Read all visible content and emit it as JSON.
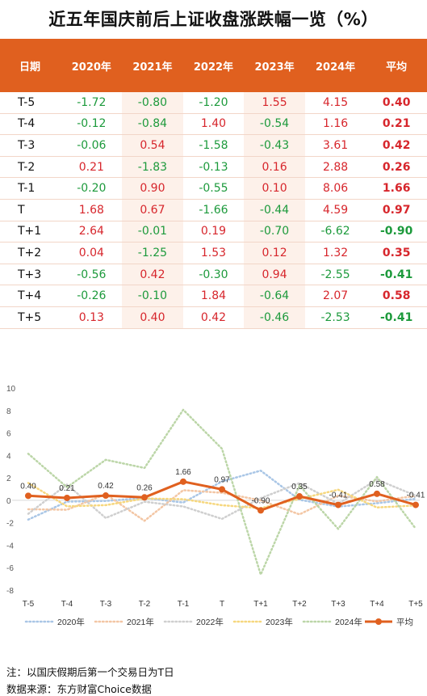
{
  "title": "近五年国庆前后上证收盘涨跌幅一览（%）",
  "table": {
    "headers": [
      "日期",
      "2020年",
      "2021年",
      "2022年",
      "2023年",
      "2024年",
      "平均"
    ],
    "rows": [
      [
        "T-5",
        "-1.72",
        "-0.80",
        "-1.20",
        "1.55",
        "4.15",
        "0.40"
      ],
      [
        "T-4",
        "-0.12",
        "-0.84",
        "1.40",
        "-0.54",
        "1.16",
        "0.21"
      ],
      [
        "T-3",
        "-0.06",
        "0.54",
        "-1.58",
        "-0.43",
        "3.61",
        "0.42"
      ],
      [
        "T-2",
        "0.21",
        "-1.83",
        "-0.13",
        "0.16",
        "2.88",
        "0.26"
      ],
      [
        "T-1",
        "-0.20",
        "0.90",
        "-0.55",
        "0.10",
        "8.06",
        "1.66"
      ],
      [
        "T",
        "1.68",
        "0.67",
        "-1.66",
        "-0.44",
        "4.59",
        "0.97"
      ],
      [
        "T+1",
        "2.64",
        "-0.01",
        "0.19",
        "-0.70",
        "-6.62",
        "-0.90"
      ],
      [
        "T+2",
        "0.04",
        "-1.25",
        "1.53",
        "0.12",
        "1.32",
        "0.35"
      ],
      [
        "T+3",
        "-0.56",
        "0.42",
        "-0.30",
        "0.94",
        "-2.55",
        "-0.41"
      ],
      [
        "T+4",
        "-0.26",
        "-0.10",
        "1.84",
        "-0.64",
        "2.07",
        "0.58"
      ],
      [
        "T+5",
        "0.13",
        "0.40",
        "0.42",
        "-0.46",
        "-2.53",
        "-0.41"
      ]
    ]
  },
  "colors": {
    "header_bg": "#e0601f",
    "positive": "#d7262c",
    "negative": "#1d9a3c",
    "shade": "#fdf1ea"
  },
  "chart_data": {
    "type": "line",
    "categories": [
      "T-5",
      "T-4",
      "T-3",
      "T-2",
      "T-1",
      "T",
      "T+1",
      "T+2",
      "T+3",
      "T+4",
      "T+5"
    ],
    "ylim": [
      -8,
      10
    ],
    "yticks": [
      -8,
      -6,
      -4,
      -2,
      0,
      2,
      4,
      6,
      8,
      10
    ],
    "grid": false,
    "legend": "bottom",
    "series": [
      {
        "name": "2020年",
        "color": "#a9c6e6",
        "style": "dotted",
        "values": [
          -1.72,
          -0.12,
          -0.06,
          0.21,
          -0.2,
          1.68,
          2.64,
          0.04,
          -0.56,
          -0.26,
          0.13
        ]
      },
      {
        "name": "2021年",
        "color": "#f3c6a4",
        "style": "dotted",
        "values": [
          -0.8,
          -0.84,
          0.54,
          -1.83,
          0.9,
          0.67,
          -0.01,
          -1.25,
          0.42,
          -0.1,
          0.4
        ]
      },
      {
        "name": "2022年",
        "color": "#cfcfcf",
        "style": "dotted",
        "values": [
          -1.2,
          1.4,
          -1.58,
          -0.13,
          -0.55,
          -1.66,
          0.19,
          1.53,
          -0.3,
          1.84,
          0.42
        ]
      },
      {
        "name": "2023年",
        "color": "#f6d77e",
        "style": "dotted",
        "values": [
          1.55,
          -0.54,
          -0.43,
          0.16,
          0.1,
          -0.44,
          -0.7,
          0.12,
          0.94,
          -0.64,
          -0.46
        ]
      },
      {
        "name": "2024年",
        "color": "#bcd6a8",
        "style": "dotted",
        "values": [
          4.15,
          1.16,
          3.61,
          2.88,
          8.06,
          4.59,
          -6.62,
          1.32,
          -2.55,
          2.07,
          -2.53
        ]
      },
      {
        "name": "平均",
        "color": "#e0601f",
        "style": "solid",
        "values": [
          0.4,
          0.21,
          0.42,
          0.26,
          1.66,
          0.97,
          -0.9,
          0.35,
          -0.41,
          0.58,
          -0.41
        ],
        "labels": [
          "0.40",
          "0.21",
          "0.42",
          "0.26",
          "1.66",
          "0.97",
          "-0.90",
          "0.35",
          "-0.41",
          "0.58",
          "-0.41"
        ]
      }
    ]
  },
  "footnotes": {
    "note": "注：以国庆假期后第一个交易日为T日",
    "source": "数据来源：东方财富Choice数据"
  }
}
